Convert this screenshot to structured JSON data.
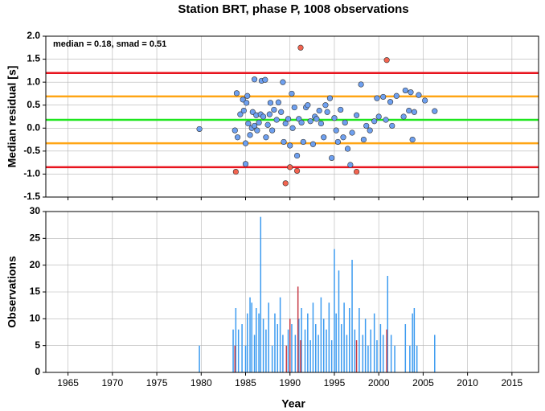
{
  "chart_data": [
    {
      "type": "scatter",
      "title": "Station BRT, phase P, 1008 observations",
      "ylabel": "Median residual [s]",
      "annotation": "median = 0.18, smad = 0.51",
      "grid": true,
      "xlim": [
        1962.5,
        2018
      ],
      "xticks": [
        1965,
        1970,
        1975,
        1980,
        1985,
        1990,
        1995,
        2000,
        2005,
        2010,
        2015
      ],
      "ylim": [
        -1.5,
        2.0
      ],
      "yticks": [
        {
          "value": -1.5,
          "label": "-1.5"
        },
        {
          "value": -1.0,
          "label": "-1.0"
        },
        {
          "value": -0.5,
          "label": "-0.5"
        },
        {
          "value": 0,
          "label": "0.0"
        },
        {
          "value": 0.5,
          "label": "0.5"
        },
        {
          "value": 1.0,
          "label": "1.0"
        },
        {
          "value": 1.5,
          "label": "1.5"
        },
        {
          "value": 2.0,
          "label": "2.0"
        }
      ],
      "lines": [
        {
          "value": 1.2,
          "color": "#e8141e"
        },
        {
          "value": -0.85,
          "color": "#e8141e"
        },
        {
          "value": 0.69,
          "color": "#ffa514"
        },
        {
          "value": -0.33,
          "color": "#ffa514"
        },
        {
          "value": 0.18,
          "color": "#1ee61e"
        }
      ],
      "series": [
        {
          "color": "#6ea0f0",
          "x": [
            1979.8,
            1983.8,
            1984.0,
            1984.1,
            1984.4,
            1984.7,
            1984.8,
            1985.0,
            1985.0,
            1985.1,
            1985.2,
            1985.3,
            1985.5,
            1985.7,
            1985.8,
            1986.0,
            1986.0,
            1986.2,
            1986.3,
            1986.5,
            1986.7,
            1986.8,
            1987.0,
            1987.2,
            1987.3,
            1987.5,
            1987.7,
            1987.8,
            1988.0,
            1988.2,
            1988.5,
            1988.7,
            1989.0,
            1989.2,
            1989.3,
            1989.5,
            1989.8,
            1990.0,
            1990.2,
            1990.3,
            1990.5,
            1990.8,
            1991.0,
            1991.3,
            1991.5,
            1991.8,
            1992.0,
            1992.3,
            1992.6,
            1992.8,
            1993.0,
            1993.3,
            1993.5,
            1993.8,
            1994.0,
            1994.2,
            1994.5,
            1994.7,
            1995.0,
            1995.2,
            1995.4,
            1995.7,
            1996.0,
            1996.2,
            1996.5,
            1996.8,
            1997.0,
            1997.5,
            1998.0,
            1998.3,
            1998.6,
            1999.0,
            1999.5,
            1999.8,
            2000.0,
            2000.5,
            2000.8,
            2001.3,
            2001.5,
            2002.0,
            2002.8,
            2003.0,
            2003.4,
            2003.6,
            2003.8,
            2004.0,
            2004.5,
            2005.2,
            2006.3
          ],
          "values": [
            -0.02,
            -0.05,
            0.76,
            -0.2,
            0.3,
            0.62,
            0.38,
            -0.78,
            -0.33,
            0.55,
            0.7,
            0.1,
            -0.15,
            0.0,
            0.35,
            1.06,
            0.05,
            0.28,
            -0.05,
            0.12,
            0.3,
            1.03,
            0.25,
            1.05,
            -0.2,
            0.07,
            0.3,
            0.55,
            -0.05,
            0.4,
            0.18,
            0.56,
            0.35,
            1.0,
            -0.3,
            0.1,
            0.2,
            -0.38,
            0.75,
            0.0,
            0.45,
            -0.6,
            0.2,
            0.12,
            -0.3,
            0.45,
            0.5,
            0.15,
            -0.35,
            0.25,
            0.2,
            0.38,
            0.1,
            -0.2,
            0.5,
            0.35,
            0.65,
            -0.65,
            0.22,
            -0.05,
            -0.3,
            0.4,
            -0.2,
            0.12,
            -0.45,
            -0.8,
            -0.1,
            0.28,
            0.95,
            -0.25,
            0.05,
            -0.05,
            0.15,
            0.65,
            0.25,
            0.68,
            0.18,
            0.57,
            0.05,
            0.7,
            0.25,
            0.82,
            0.38,
            0.78,
            -0.25,
            0.35,
            0.72,
            0.6,
            0.37
          ]
        },
        {
          "color": "#f26450",
          "x": [
            1983.9,
            1989.5,
            1990.0,
            1990.8,
            1991.2,
            1997.5,
            2000.9
          ],
          "values": [
            -0.95,
            -1.2,
            -0.85,
            -0.93,
            1.75,
            -0.95,
            1.48
          ]
        }
      ]
    },
    {
      "type": "bar",
      "ylabel": "Observations",
      "xlabel": "Year",
      "grid": true,
      "xlim": [
        1962.5,
        2018
      ],
      "xticks": [
        1965,
        1970,
        1975,
        1980,
        1985,
        1990,
        1995,
        2000,
        2005,
        2010,
        2015
      ],
      "ylim": [
        0,
        30
      ],
      "yticks": [
        0,
        5,
        10,
        15,
        20,
        25,
        30
      ],
      "series": [
        {
          "color": "#3c9bf0",
          "x": [
            1979.8,
            1983.6,
            1983.9,
            1984.2,
            1984.6,
            1985.0,
            1985.2,
            1985.5,
            1985.7,
            1986.0,
            1986.2,
            1986.5,
            1986.7,
            1987.0,
            1987.3,
            1987.6,
            1988.0,
            1988.3,
            1988.6,
            1988.9,
            1989.2,
            1989.8,
            1990.2,
            1990.6,
            1991.0,
            1991.3,
            1991.7,
            1992.0,
            1992.3,
            1992.6,
            1992.9,
            1993.2,
            1993.5,
            1993.8,
            1994.1,
            1994.4,
            1994.7,
            1995.0,
            1995.2,
            1995.5,
            1995.8,
            1996.1,
            1996.4,
            1996.7,
            1997.0,
            1997.3,
            1997.8,
            1998.2,
            1998.5,
            1998.8,
            1999.1,
            1999.5,
            1999.8,
            2000.2,
            2000.5,
            2001.0,
            2001.4,
            2001.8,
            2003.0,
            2003.5,
            2003.8,
            2004.0,
            2004.3,
            2006.3
          ],
          "values": [
            5,
            8,
            12,
            8,
            9,
            5,
            11,
            14,
            13,
            7,
            12,
            11,
            29,
            10,
            8,
            13,
            5,
            11,
            9,
            14,
            7,
            8,
            9,
            7,
            10,
            12,
            8,
            11,
            6,
            13,
            9,
            7,
            14,
            10,
            8,
            13,
            6,
            23,
            11,
            19,
            9,
            13,
            7,
            12,
            21,
            8,
            12,
            7,
            10,
            5,
            8,
            11,
            6,
            9,
            7,
            18,
            7,
            5,
            9,
            5,
            11,
            12,
            5,
            7
          ]
        },
        {
          "color": "#c83c46",
          "x": [
            1983.8,
            1989.6,
            1990.0,
            1990.9,
            1991.2,
            1997.5,
            2000.9
          ],
          "values": [
            5,
            5,
            10,
            16,
            6,
            6,
            8
          ]
        }
      ]
    }
  ]
}
